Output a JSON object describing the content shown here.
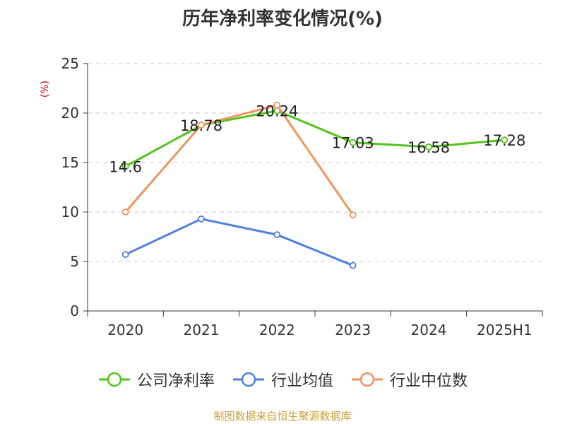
{
  "chart_data": {
    "type": "line",
    "title": "历年净利率变化情况(%)",
    "ylabel": "(%)",
    "xlabel": "",
    "categories": [
      "2020",
      "2021",
      "2022",
      "2023",
      "2024",
      "2025H1"
    ],
    "ylim": [
      0,
      25
    ],
    "yticks": [
      0,
      5,
      10,
      15,
      20,
      25
    ],
    "grid": true,
    "legend_position": "bottom",
    "series": [
      {
        "name": "公司净利率",
        "color": "#52c41a",
        "values": [
          14.6,
          18.78,
          20.24,
          17.03,
          16.58,
          17.28
        ],
        "show_labels": true
      },
      {
        "name": "行业均值",
        "color": "#4f7fe0",
        "values": [
          5.7,
          9.3,
          7.7,
          4.6,
          null,
          null
        ],
        "show_labels": false
      },
      {
        "name": "行业中位数",
        "color": "#f0935e",
        "values": [
          10.0,
          18.8,
          20.8,
          9.7,
          null,
          null
        ],
        "show_labels": false
      }
    ],
    "footer": "制图数据来自恒生聚源数据库"
  }
}
